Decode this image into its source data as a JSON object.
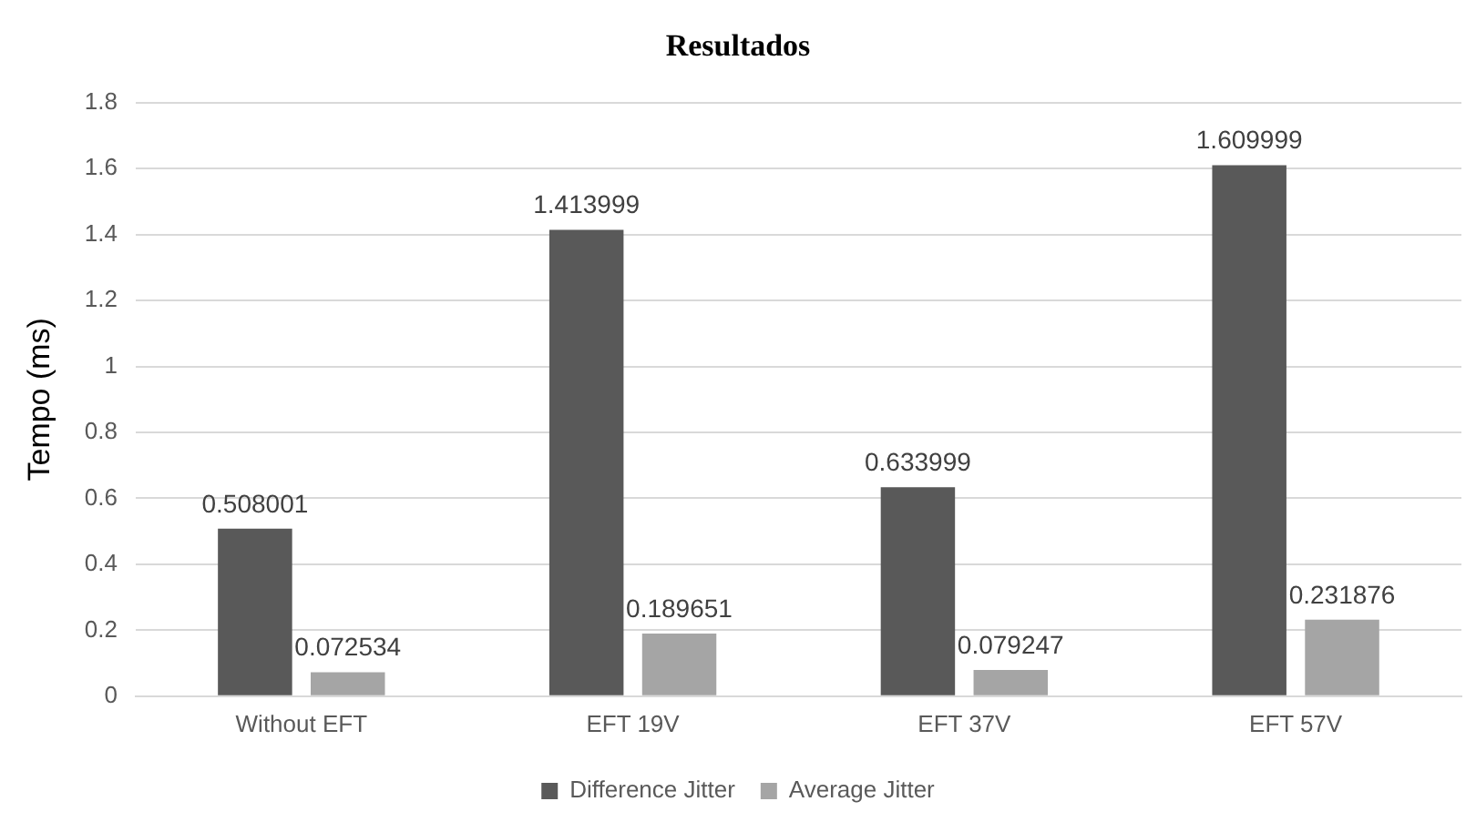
{
  "chart_data": {
    "type": "bar",
    "title": "Resultados",
    "ylabel": "Tempo (ms)",
    "categories": [
      "Without EFT",
      "EFT 19V",
      "EFT 37V",
      "EFT 57V"
    ],
    "series": [
      {
        "name": "Difference Jitter",
        "color": "#595959",
        "values": [
          0.508001,
          1.413999,
          0.633999,
          1.609999
        ]
      },
      {
        "name": "Average Jitter",
        "color": "#a5a5a5",
        "values": [
          0.072534,
          0.189651,
          0.079247,
          0.231876
        ]
      }
    ],
    "ylim": [
      0,
      1.8
    ],
    "yticks": [
      0,
      0.2,
      0.4,
      0.6,
      0.8,
      1,
      1.2,
      1.4,
      1.6,
      1.8
    ],
    "grid": "y",
    "legend": "bottom",
    "data_labels": true
  }
}
